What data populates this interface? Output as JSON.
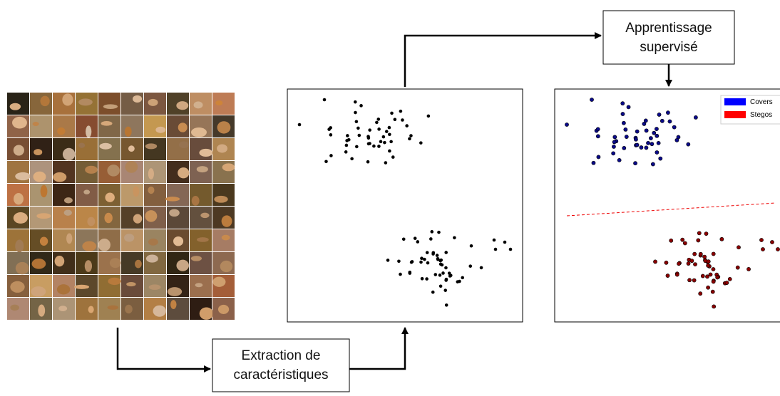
{
  "top_box": {
    "lines": [
      "Apprentissage",
      "supervisé"
    ]
  },
  "bottom_box": {
    "lines": [
      "Extraction de",
      "caractéristiques"
    ]
  },
  "legend": [
    {
      "name": "Covers",
      "color": "#0000ff"
    },
    {
      "name": "Stegos",
      "color": "#ff0000"
    }
  ]
}
